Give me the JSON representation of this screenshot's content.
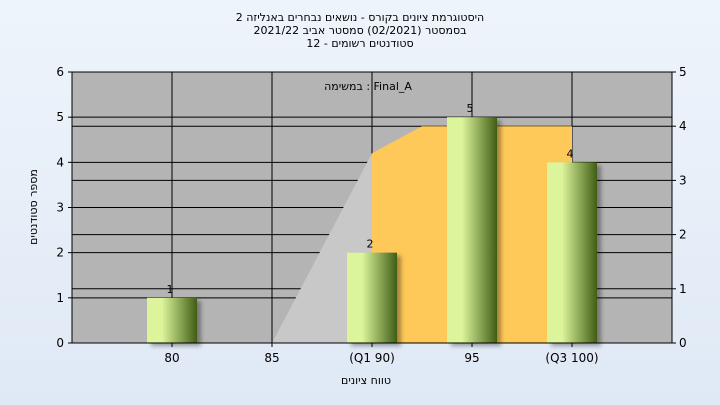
{
  "chart_data": {
    "type": "bar",
    "title_lines": [
      "היסטוגרמת ציונים בקורס - נושאים נבחרים באנליזה 2",
      "בסמסטר  (02/2021)  סמסטר אביב 2021/22",
      "סטודנטים רשומים - 12"
    ],
    "annotation": "במשימה : Final_A",
    "xlabel": "טווח ציונים",
    "ylabel": "מספר סטודנטים",
    "categories": [
      "80",
      "85",
      "(Q1 90)",
      "95",
      "(Q3 100)"
    ],
    "values": [
      1,
      0,
      2,
      5,
      4
    ],
    "data_labels": [
      "1",
      "",
      "2",
      "5",
      "4"
    ],
    "ylim": [
      0,
      6
    ],
    "y_ticks": [
      "0",
      "1",
      "2",
      "3",
      "4",
      "5",
      "6"
    ],
    "y2lim": [
      0,
      5
    ],
    "y2_ticks": [
      "0",
      "1",
      "2",
      "3",
      "4",
      "5"
    ],
    "grid": true,
    "box_plot": {
      "min_x": 85,
      "q1_x": 90,
      "q3_x": 100,
      "q1_level": 4.2,
      "q3_level": 4.8
    },
    "colors": {
      "plot_bg": "#b4b4b4",
      "bar_light": "#dcf59a",
      "bar_dark": "#3f5d16",
      "box_fill": "#ffc959",
      "whisker_fill": "#c8c8c8"
    }
  }
}
